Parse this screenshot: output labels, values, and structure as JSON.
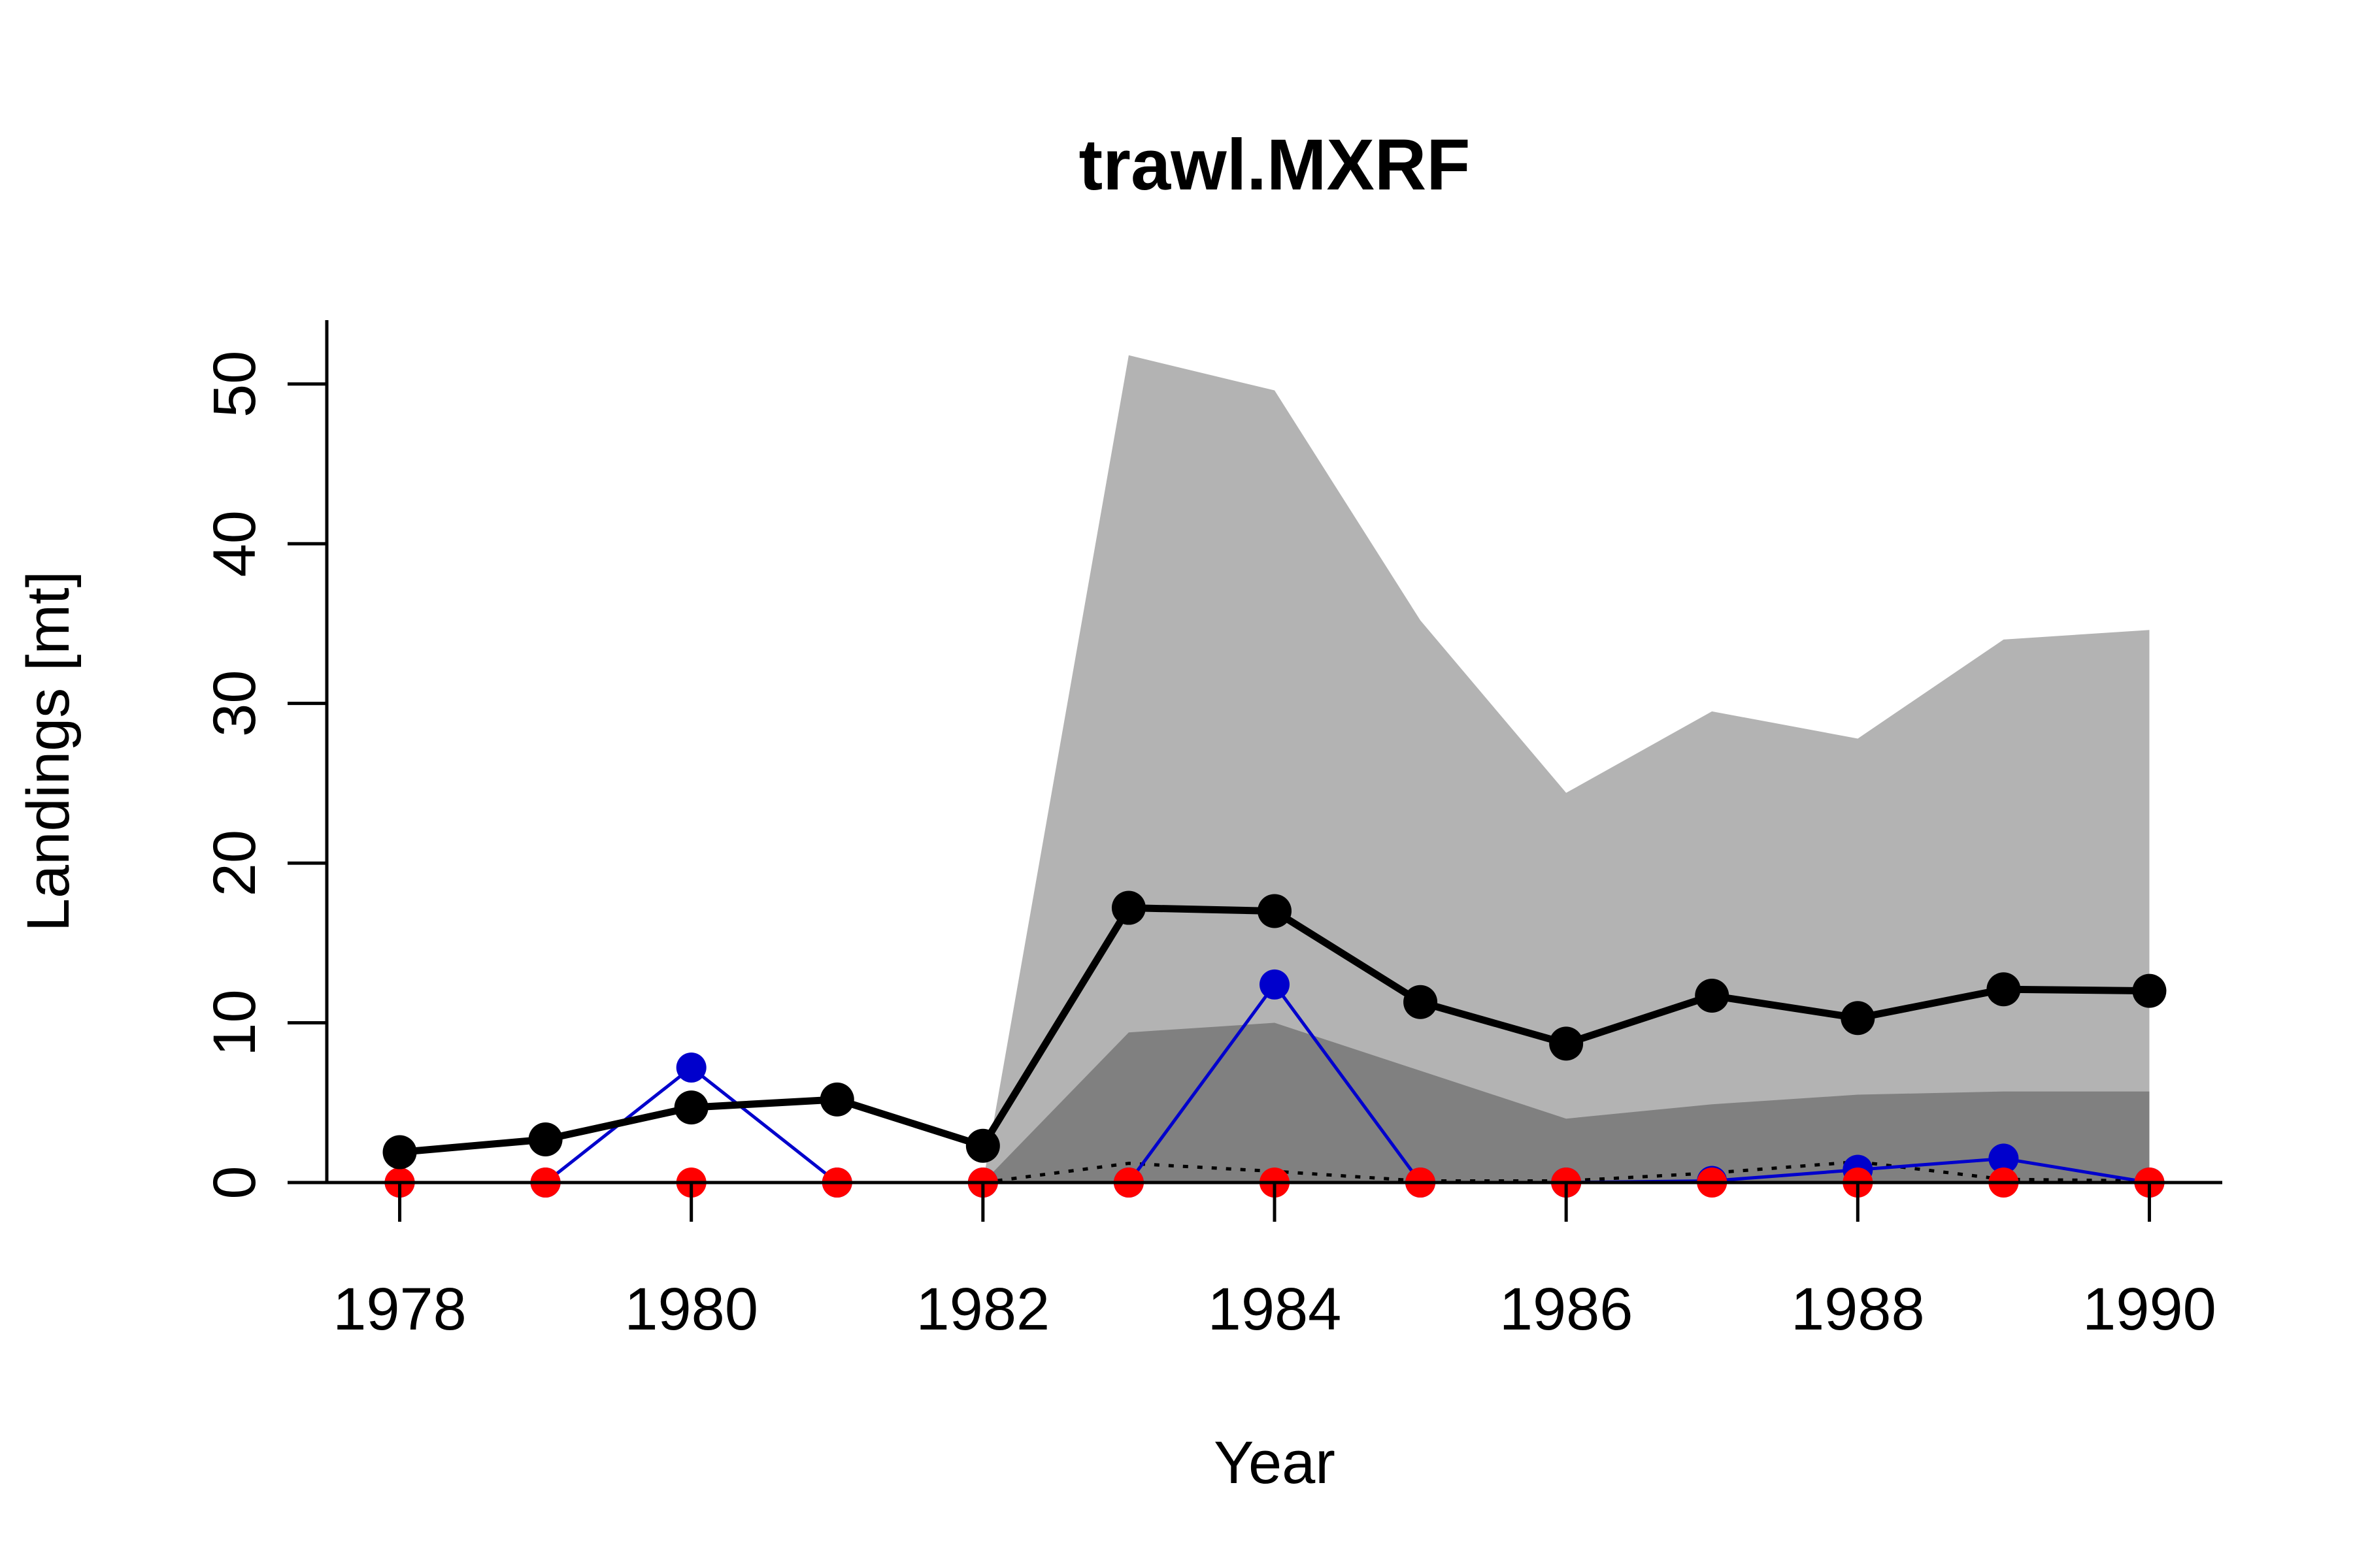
{
  "chart_data": {
    "type": "line",
    "title": "trawl.MXRF",
    "xlabel": "Year",
    "ylabel": "Landings [mt]",
    "xlim": [
      1977.5,
      1990.5
    ],
    "ylim": [
      0,
      54
    ],
    "x_ticks": [
      1978,
      1980,
      1982,
      1984,
      1986,
      1988,
      1990
    ],
    "y_ticks": [
      0,
      10,
      20,
      30,
      40,
      50
    ],
    "grid": false,
    "legend": "none",
    "bands": [
      {
        "color": "#b3b3b3",
        "x": [
          1982,
          1983,
          1984,
          1985,
          1986,
          1987,
          1988,
          1989,
          1990
        ],
        "lower": [
          0,
          0,
          0,
          0,
          0,
          0,
          0,
          0,
          0
        ],
        "upper": [
          0,
          51.8,
          49.6,
          35.2,
          24.4,
          29.5,
          27.8,
          34.0,
          34.6
        ]
      },
      {
        "color": "#808080",
        "x": [
          1982,
          1983,
          1984,
          1985,
          1986,
          1987,
          1988,
          1989,
          1990
        ],
        "lower": [
          0,
          0,
          0,
          0,
          0,
          0,
          0,
          0,
          0
        ],
        "upper": [
          0,
          9.4,
          10.0,
          7.0,
          4.0,
          4.9,
          5.5,
          5.7,
          5.7
        ]
      }
    ],
    "series": [
      {
        "color": "#000000",
        "style": "dotted",
        "x": [
          1982,
          1983,
          1984,
          1985,
          1986,
          1987,
          1988,
          1989,
          1990
        ],
        "values": [
          0,
          1.2,
          0.7,
          0.1,
          0.1,
          0.6,
          1.3,
          0.2,
          0.1
        ]
      },
      {
        "color": "#0000cc",
        "style": "solid",
        "markers": true,
        "x": [
          1978,
          1979,
          1980,
          1981,
          1982,
          1983,
          1984,
          1985,
          1986,
          1987,
          1988,
          1989,
          1990
        ],
        "values": [
          0,
          0,
          7.2,
          0,
          0,
          0,
          12.4,
          0,
          0,
          0.1,
          0.8,
          1.5,
          0
        ]
      },
      {
        "color": "#ff0000",
        "style": "solid",
        "markers": true,
        "x": [
          1978,
          1979,
          1980,
          1981,
          1982,
          1983,
          1984,
          1985,
          1986,
          1987,
          1988,
          1989,
          1990
        ],
        "values": [
          0,
          0,
          0,
          0,
          0,
          0,
          0,
          0,
          0,
          0,
          0,
          0,
          0
        ]
      },
      {
        "color": "#000000",
        "style": "solid",
        "bold": true,
        "markers": true,
        "x": [
          1978,
          1979,
          1980,
          1981,
          1982,
          1983,
          1984,
          1985,
          1986,
          1987,
          1988,
          1989,
          1990
        ],
        "values": [
          1.9,
          2.7,
          4.7,
          5.2,
          2.3,
          17.2,
          17.0,
          11.3,
          8.7,
          11.7,
          10.3,
          12.1,
          12.0
        ]
      }
    ]
  }
}
